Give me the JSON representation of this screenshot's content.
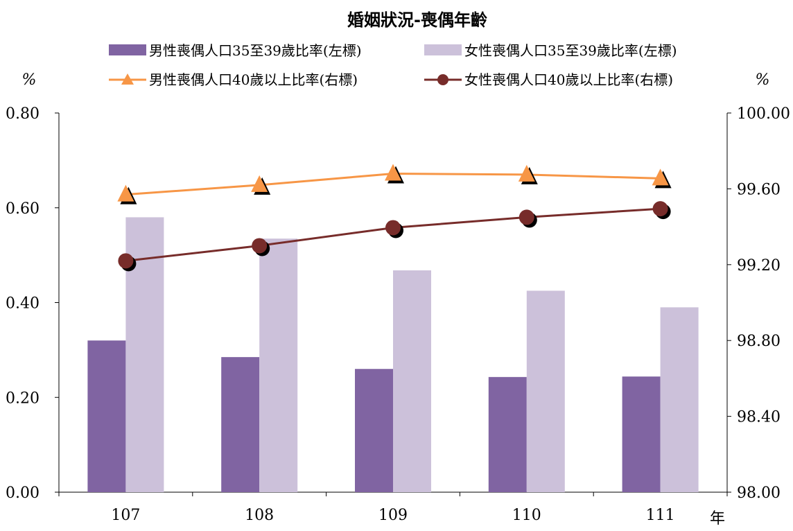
{
  "chart_data": {
    "type": "bar",
    "title": "婚姻狀況-喪偶年齡",
    "categories": [
      "107",
      "108",
      "109",
      "110",
      "111"
    ],
    "xlabel": "年",
    "ylabel_left": "%",
    "ylabel_right": "%",
    "ylim_left": [
      0,
      0.8
    ],
    "ylim_right": [
      98.0,
      100.0
    ],
    "yticks_left": [
      "0.00",
      "0.20",
      "0.40",
      "0.60",
      "0.80"
    ],
    "yticks_right": [
      "98.00",
      "98.40",
      "98.80",
      "99.20",
      "99.60",
      "100.00"
    ],
    "grid": false,
    "legend_position": "top",
    "series": [
      {
        "name": "男性喪偶人口35至39歲比率(左標)",
        "type": "bar",
        "axis": "left",
        "color": "#8064a2",
        "values": [
          0.32,
          0.285,
          0.26,
          0.243,
          0.244
        ]
      },
      {
        "name": "女性喪偶人口35至39歲比率(左標)",
        "type": "bar",
        "axis": "left",
        "color": "#ccc1da",
        "values": [
          0.58,
          0.535,
          0.468,
          0.425,
          0.39
        ]
      },
      {
        "name": "男性喪偶人口40歲以上比率(右標)",
        "type": "line",
        "axis": "right",
        "color": "#f79646",
        "marker": "triangle",
        "values": [
          99.57,
          99.62,
          99.68,
          99.675,
          99.655
        ]
      },
      {
        "name": "女性喪偶人口40歲以上比率(右標)",
        "type": "line",
        "axis": "right",
        "color": "#772c2a",
        "marker": "circle",
        "values": [
          99.22,
          99.3,
          99.395,
          99.45,
          99.495
        ]
      }
    ]
  }
}
